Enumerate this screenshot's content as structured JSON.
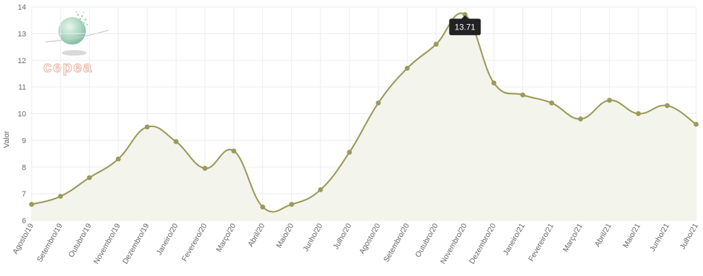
{
  "logo": {
    "text": "cepea"
  },
  "chart_data": {
    "type": "area",
    "title": "",
    "xlabel": "",
    "ylabel": "Valor",
    "ylim": [
      6,
      14
    ],
    "yticks": [
      6,
      7,
      8,
      9,
      10,
      11,
      12,
      13,
      14
    ],
    "grid": true,
    "categories": [
      "Agosto/19",
      "Setembro/19",
      "Outubro/19",
      "Novembro/19",
      "Dezembro/19",
      "Janeiro/20",
      "Fevereiro/20",
      "Março/20",
      "Abril/20",
      "Maio/20",
      "Junho/20",
      "Julho/20",
      "Agosto/20",
      "Setembro/20",
      "Outubro/20",
      "Novembro/20",
      "Dezembro/20",
      "Janeiro/21",
      "Fevereiro/21",
      "Março/21",
      "Abril/21",
      "Maio/21",
      "Junho/21",
      "Julho/21"
    ],
    "series": [
      {
        "values": [
          6.6,
          6.9,
          7.6,
          8.3,
          9.5,
          8.95,
          7.95,
          8.6,
          6.5,
          6.6,
          7.15,
          8.55,
          10.4,
          11.7,
          12.6,
          13.71,
          11.15,
          10.7,
          10.4,
          9.8,
          10.5,
          10.0,
          10.3,
          9.6
        ]
      }
    ],
    "tooltip": {
      "label": "13.71"
    },
    "colors": {
      "line": "#9b9a5a",
      "fill": "#f3f4ec",
      "grid": "#ebebeb",
      "tooltip_bg": "#222222"
    }
  }
}
